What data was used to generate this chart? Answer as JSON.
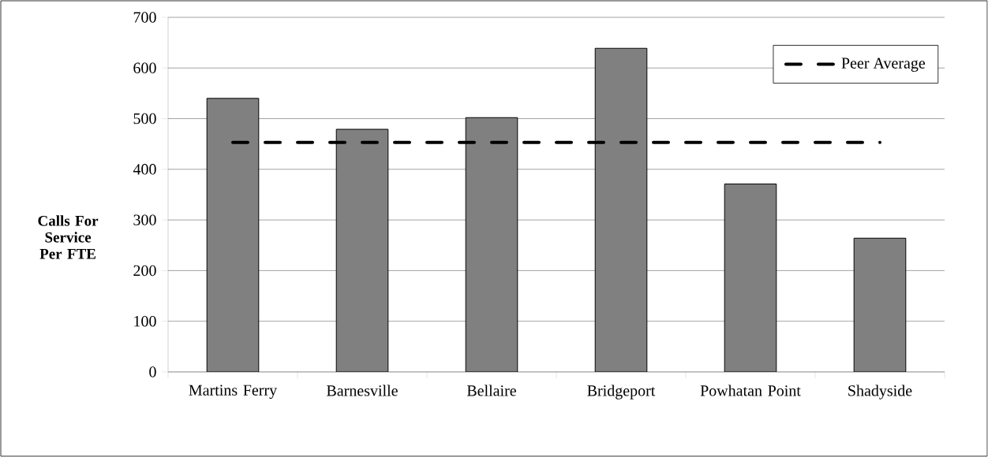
{
  "chart_data": {
    "type": "bar",
    "ylabel": "Calls For Service Per FTE",
    "categories": [
      "Martins Ferry",
      "Barnesville",
      "Bellaire",
      "Bridgeport",
      "Powhatan Point",
      "Shadyside"
    ],
    "series": [
      {
        "color": "#808080",
        "values": [
          540,
          479,
          502,
          639,
          371,
          264
        ]
      },
      {
        "type": "line",
        "name": "Peer Average",
        "color": "#000000",
        "line_style": "dashed",
        "values": [
          453,
          453,
          453,
          453,
          453,
          453
        ]
      }
    ],
    "ylim": [
      0,
      700
    ],
    "yticks": [
      0,
      100,
      200,
      300,
      400,
      500,
      600,
      700
    ],
    "grid": "y",
    "legend": "top right"
  }
}
